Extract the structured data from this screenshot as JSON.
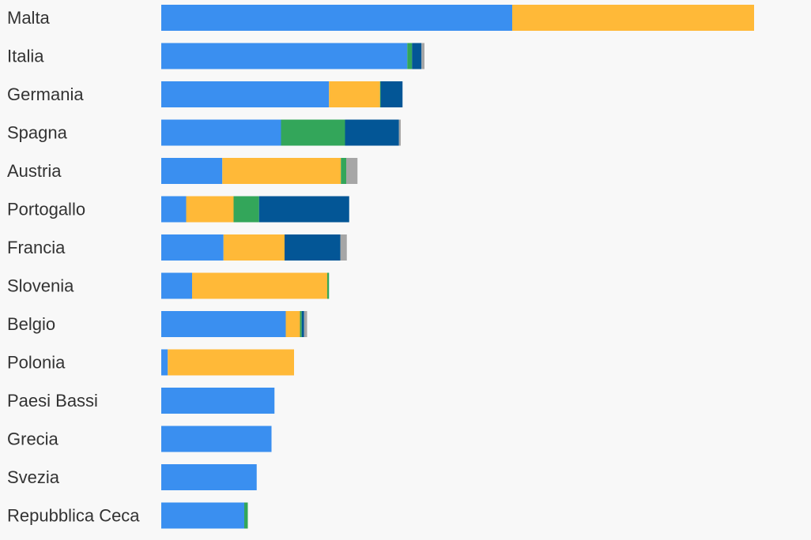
{
  "chart_data": {
    "type": "bar",
    "orientation": "horizontal",
    "stacked": true,
    "grid": false,
    "legend": "none",
    "title": "",
    "xlabel": "",
    "ylabel": "",
    "xlim": [
      0,
      100
    ],
    "categories": [
      "Malta",
      "Italia",
      "Germania",
      "Spagna",
      "Austria",
      "Portogallo",
      "Francia",
      "Slovenia",
      "Belgio",
      "Polonia",
      "Paesi Bassi",
      "Grecia",
      "Svezia",
      "Repubblica Ceca"
    ],
    "series": [
      {
        "color": "#3a8ff0",
        "values": [
          59.2,
          41.5,
          28.3,
          20.2,
          10.3,
          4.2,
          10.5,
          5.2,
          21.0,
          1.1,
          19.1,
          18.6,
          16.1,
          14.0
        ]
      },
      {
        "color": "#ffb938",
        "values": [
          40.8,
          0.0,
          8.6,
          0.0,
          20.0,
          8.0,
          10.3,
          22.8,
          2.4,
          21.3,
          0,
          0,
          0,
          0
        ]
      },
      {
        "color": "#33a65a",
        "values": [
          0,
          0.8,
          0.1,
          10.8,
          0.9,
          4.3,
          0,
          0.3,
          0.3,
          0,
          0,
          0,
          0,
          0.6
        ]
      },
      {
        "color": "#035696",
        "values": [
          0,
          1.6,
          3.7,
          9.1,
          0,
          15.2,
          9.4,
          0,
          0.4,
          0,
          0,
          0,
          0,
          0
        ]
      },
      {
        "color": "#a6a6a6",
        "values": [
          0,
          0.5,
          0,
          0.3,
          1.9,
          0,
          1.1,
          0,
          0.5,
          0,
          0,
          0,
          0,
          0
        ]
      }
    ]
  }
}
